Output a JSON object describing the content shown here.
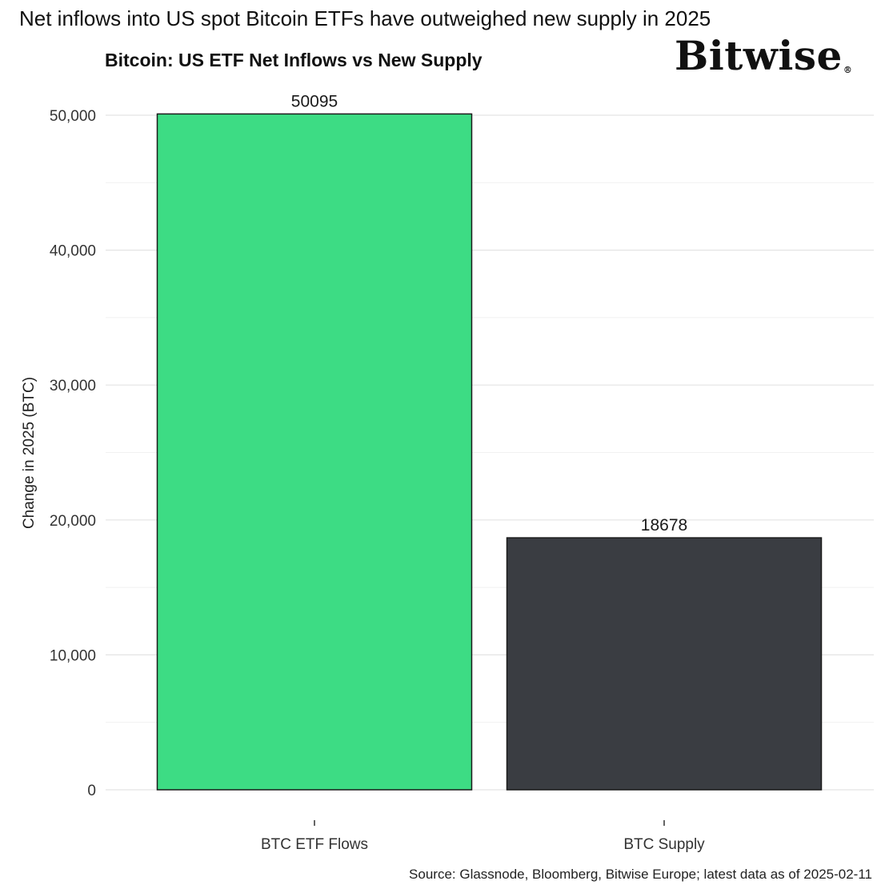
{
  "headline": "Net inflows into US spot Bitcoin ETFs have outweighed new supply in 2025",
  "brand": {
    "logo_text": "Bitwise"
  },
  "source_note": "Source: Glassnode, Bloomberg, Bitwise Europe; latest data as of 2025-02-11",
  "chart_data": {
    "type": "bar",
    "title": "Bitcoin: US ETF Net Inflows vs New Supply",
    "xlabel": "",
    "ylabel": "Change in 2025 (BTC)",
    "categories": [
      "BTC ETF Flows",
      "BTC Supply"
    ],
    "values": [
      50095,
      18678
    ],
    "value_labels": [
      "50095",
      "18678"
    ],
    "bar_colors": [
      "#3ddc84",
      "#3a3d42"
    ],
    "ylim": [
      0,
      52000
    ],
    "yticks": [
      0,
      10000,
      20000,
      30000,
      40000,
      50000
    ],
    "ytick_labels": [
      "0",
      "10,000",
      "20,000",
      "30,000",
      "40,000",
      "50,000"
    ],
    "grid": true
  }
}
